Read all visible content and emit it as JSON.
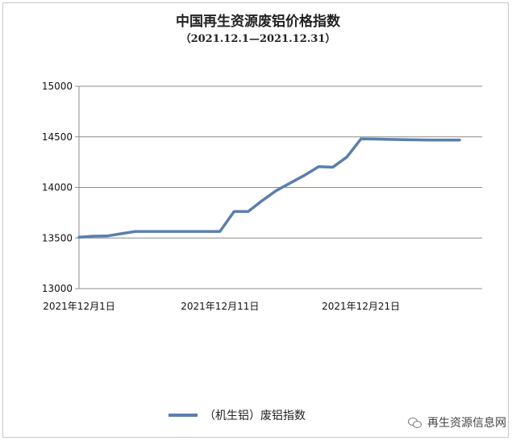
{
  "chart_data": {
    "type": "line",
    "title": "中国再生资源废铝价格指数",
    "subtitle": "（2021.12.1—2021.12.31）",
    "x_tick_labels": [
      "2021年12月1日",
      "2021年12月11日",
      "2021年12月21日"
    ],
    "x_tick_index": [
      0,
      10,
      20
    ],
    "y_ticks": [
      13000,
      13500,
      14000,
      14500,
      15000
    ],
    "ylim": [
      13000,
      15000
    ],
    "grid": "horizontal",
    "legend_position": "bottom-center",
    "series": [
      {
        "name": "（机生铝）废铝指数",
        "color": "#5a7fae",
        "x": [
          0,
          1,
          2,
          3,
          4,
          5,
          6,
          7,
          8,
          9,
          10,
          11,
          12,
          13,
          14,
          15,
          16,
          17,
          18,
          19,
          20,
          21,
          22,
          23,
          24,
          25,
          26,
          27
        ],
        "values": [
          13508,
          13518,
          13520,
          13543,
          13565,
          13565,
          13565,
          13565,
          13565,
          13565,
          13565,
          13762,
          13762,
          13870,
          13970,
          14045,
          14120,
          14205,
          14200,
          14300,
          14480,
          14478,
          14475,
          14472,
          14470,
          14468,
          14468,
          14468
        ]
      }
    ]
  },
  "watermark": {
    "icon": "wechat-icon",
    "text": "再生资源信息网"
  }
}
